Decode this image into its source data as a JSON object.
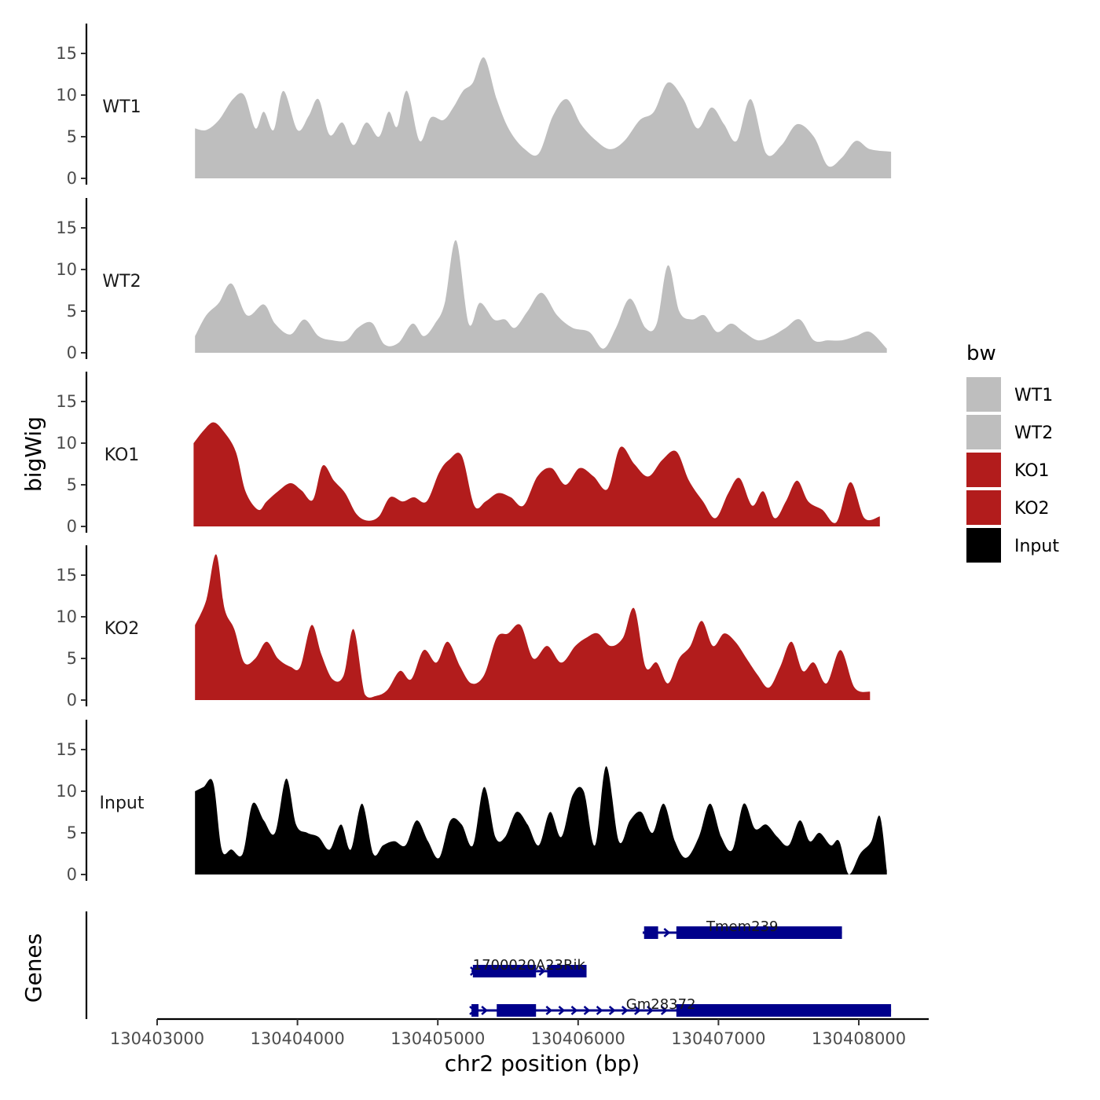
{
  "chart_data": {
    "type": "area",
    "x_axis": {
      "title": "chr2 position (bp)",
      "range": [
        130402950,
        130408500
      ],
      "ticks": [
        130403000,
        130404000,
        130405000,
        130406000,
        130407000,
        130408000
      ],
      "tick_labels": [
        "130403000",
        "130404000",
        "130405000",
        "130406000",
        "130407000",
        "130408000"
      ]
    },
    "y_axis": {
      "title": "bigWig",
      "range": [
        0,
        18.5
      ],
      "ticks": [
        0,
        5,
        10,
        15
      ],
      "tick_labels": [
        "0",
        "5",
        "10",
        "15"
      ]
    },
    "gene_axis_title": "Genes",
    "legend": {
      "title": "bw",
      "entries": [
        {
          "label": "WT1",
          "color": "#bebebe"
        },
        {
          "label": "WT2",
          "color": "#bebebe"
        },
        {
          "label": "KO1",
          "color": "#b21c1c"
        },
        {
          "label": "KO2",
          "color": "#b21c1c"
        },
        {
          "label": "Input",
          "color": "#000000"
        }
      ]
    },
    "tracks": [
      {
        "name": "WT1",
        "color": "#bebebe",
        "x": [
          130403270,
          130403350,
          130403440,
          130403540,
          130403620,
          130403700,
          130403760,
          130403830,
          130403900,
          130404000,
          130404080,
          130404150,
          130404230,
          130404320,
          130404400,
          130404490,
          130404580,
          130404650,
          130404710,
          130404780,
          130404870,
          130404950,
          130405040,
          130405110,
          130405180,
          130405250,
          130405330,
          130405420,
          130405510,
          130405620,
          130405720,
          130405820,
          130405920,
          130406020,
          130406130,
          130406230,
          130406330,
          130406440,
          130406540,
          130406640,
          130406750,
          130406850,
          130406950,
          130407040,
          130407130,
          130407230,
          130407340,
          130407450,
          130407560,
          130407680,
          130407780,
          130407880,
          130407980,
          130408080,
          130408230
        ],
        "y": [
          6,
          5.8,
          7,
          9.5,
          10,
          6,
          8,
          5.8,
          10.5,
          5.8,
          7.5,
          9.5,
          5.2,
          6.7,
          4,
          6.7,
          5,
          8,
          6.2,
          10.5,
          4.5,
          7.3,
          7,
          8.5,
          10.5,
          11.5,
          14.5,
          9.5,
          5.8,
          3.5,
          3,
          7.5,
          9.5,
          6.5,
          4.5,
          3.5,
          4.5,
          7,
          8,
          11.5,
          9.5,
          6,
          8.5,
          6.5,
          4.5,
          9.5,
          3,
          4,
          6.5,
          5,
          1.5,
          2.5,
          4.5,
          3.5,
          3.2
        ],
        "peaks": []
      },
      {
        "name": "WT2",
        "color": "#bebebe",
        "x": [
          130403270,
          130403350,
          130403440,
          130403530,
          130403640,
          130403760,
          130403840,
          130403950,
          130404050,
          130404150,
          130404250,
          130404350,
          130404430,
          130404530,
          130404620,
          130404720,
          130404820,
          130404900,
          130404980,
          130405050,
          130405130,
          130405220,
          130405300,
          130405400,
          130405480,
          130405550,
          130405640,
          130405740,
          130405850,
          130405960,
          130406080,
          130406180,
          130406270,
          130406370,
          130406480,
          130406560,
          130406640,
          130406720,
          130406810,
          130406900,
          130406990,
          130407090,
          130407180,
          130407280,
          130407380,
          130407480,
          130407580,
          130407680,
          130407780,
          130407880,
          130407980,
          130408080,
          130408200
        ],
        "y": [
          2,
          4.5,
          6,
          8.3,
          4.5,
          5.8,
          3.5,
          2.2,
          4,
          2,
          1.5,
          1.5,
          3,
          3.6,
          1,
          1.2,
          3.5,
          2,
          3.5,
          6,
          13.5,
          3.5,
          6,
          4,
          4,
          3,
          5,
          7.2,
          4.5,
          3,
          2.5,
          0.5,
          3,
          6.5,
          3,
          3.5,
          10.5,
          5,
          4,
          4.5,
          2.5,
          3.5,
          2.5,
          1.5,
          2,
          3,
          4,
          1.5,
          1.5,
          1.5,
          2,
          2.5,
          0.5
        ],
        "peaks": []
      },
      {
        "name": "KO1",
        "color": "#b21c1c",
        "x": [
          130403260,
          130403330,
          130403400,
          130403470,
          130403560,
          130403630,
          130403720,
          130403780,
          130403860,
          130403950,
          130404030,
          130404110,
          130404180,
          130404260,
          130404340,
          130404420,
          130404500,
          130404580,
          130404660,
          130404750,
          130404830,
          130404920,
          130405010,
          130405080,
          130405170,
          130405260,
          130405340,
          130405430,
          130405520,
          130405610,
          130405710,
          130405810,
          130405910,
          130406010,
          130406110,
          130406210,
          130406300,
          130406400,
          130406500,
          130406600,
          130406700,
          130406790,
          130406890,
          130406980,
          130407070,
          130407150,
          130407240,
          130407320,
          130407400,
          130407480,
          130407560,
          130407640,
          130407740,
          130407840,
          130407940,
          130408040,
          130408150
        ],
        "y": [
          10,
          11.5,
          12.5,
          11.5,
          9,
          4.2,
          2,
          3,
          4.2,
          5.2,
          4.3,
          3.2,
          7.3,
          5.5,
          4,
          1.5,
          0.7,
          1.2,
          3.5,
          3,
          3.5,
          3,
          6.5,
          8,
          8.5,
          2.5,
          3,
          4,
          3.5,
          2.5,
          6,
          7,
          5,
          7,
          6,
          4.5,
          9.5,
          7.5,
          6,
          8,
          9,
          5.5,
          3,
          1,
          4,
          5.8,
          2.5,
          4.2,
          1,
          3,
          5.5,
          3,
          2,
          0.5,
          5.3,
          1,
          1.2
        ],
        "peaks": []
      },
      {
        "name": "KO2",
        "color": "#b21c1c",
        "x": [
          130403270,
          130403350,
          130403420,
          130403480,
          130403550,
          130403620,
          130403700,
          130403780,
          130403860,
          130403950,
          130404020,
          130404100,
          130404170,
          130404250,
          130404330,
          130404400,
          130404480,
          130404560,
          130404640,
          130404730,
          130404810,
          130404900,
          130404990,
          130405070,
          130405160,
          130405240,
          130405330,
          130405420,
          130405500,
          130405590,
          130405680,
          130405780,
          130405880,
          130405980,
          130406060,
          130406140,
          130406230,
          130406320,
          130406400,
          130406480,
          130406560,
          130406640,
          130406720,
          130406800,
          130406880,
          130406960,
          130407040,
          130407120,
          130407200,
          130407280,
          130407360,
          130407440,
          130407520,
          130407600,
          130407680,
          130407770,
          130407870,
          130407970,
          130408080
        ],
        "y": [
          9,
          12,
          17.5,
          11,
          8.5,
          4.5,
          5,
          7,
          5,
          4,
          4,
          9,
          5.5,
          2.5,
          3,
          8.5,
          0.7,
          0.5,
          1.2,
          3.5,
          2.5,
          6,
          4.5,
          7,
          4,
          2,
          3,
          7.5,
          8,
          9,
          5,
          6.5,
          4.5,
          6.5,
          7.5,
          8,
          6.5,
          7.5,
          11,
          4,
          4.5,
          2,
          5,
          6.5,
          9.5,
          6.5,
          8,
          7,
          5,
          3,
          1.5,
          4,
          7,
          3.5,
          4.5,
          2,
          6,
          1.5,
          1
        ],
        "peaks": []
      },
      {
        "name": "Input",
        "color": "#000000",
        "x": [
          130403270,
          130403330,
          130403400,
          130403460,
          130403530,
          130403610,
          130403680,
          130403760,
          130403840,
          130403920,
          130403990,
          130404070,
          130404150,
          130404230,
          130404310,
          130404380,
          130404460,
          130404540,
          130404610,
          130404690,
          130404770,
          130404850,
          130404930,
          130405010,
          130405090,
          130405170,
          130405250,
          130405330,
          130405410,
          130405480,
          130405560,
          130405640,
          130405720,
          130405800,
          130405880,
          130405960,
          130406040,
          130406120,
          130406200,
          130406290,
          130406370,
          130406450,
          130406530,
          130406610,
          130406690,
          130406770,
          130406860,
          130406940,
          130407020,
          130407100,
          130407180,
          130407260,
          130407340,
          130407420,
          130407500,
          130407580,
          130407650,
          130407720,
          130407800,
          130407860,
          130407930,
          130408010,
          130408090,
          130408150,
          130408200
        ],
        "y": [
          10,
          10.5,
          11,
          3,
          3,
          2.5,
          8.5,
          6.5,
          5,
          11.5,
          6,
          5,
          4.5,
          3,
          6,
          3,
          8.5,
          2.5,
          3.5,
          4,
          3.5,
          6.5,
          4,
          2,
          6.5,
          6,
          3.5,
          10.5,
          4.5,
          4.5,
          7.5,
          6,
          3.5,
          7.5,
          4.5,
          9.5,
          10,
          3.5,
          13,
          4,
          6.5,
          7.5,
          5,
          8.5,
          4,
          2,
          4.5,
          8.5,
          4.5,
          3,
          8.5,
          5.5,
          6,
          4.5,
          3.5,
          6.5,
          4,
          5,
          3.5,
          4,
          0,
          2.5,
          4,
          7,
          0.5
        ],
        "peaks": []
      }
    ],
    "genes": [
      {
        "name": "Tmem239",
        "row": 0,
        "label_x": 130407170,
        "line": [
          130406460,
          130407880
        ],
        "exons": [
          [
            130406470,
            130406570
          ],
          [
            130406700,
            130407880
          ]
        ],
        "arrows": [
          130406500,
          130406630
        ]
      },
      {
        "name": "1700020A23Rik",
        "row": 1,
        "label_x": 130405650,
        "line": [
          130405240,
          130406060
        ],
        "exons": [
          [
            130405250,
            130405700
          ],
          [
            130405780,
            130406060
          ]
        ],
        "arrows": [
          130405250,
          130405740
        ]
      },
      {
        "name": "Gm28372",
        "row": 2,
        "label_x": 130406590,
        "line": [
          130405240,
          130408230
        ],
        "exons": [
          [
            130405240,
            130405290
          ],
          [
            130405420,
            130405700
          ],
          [
            130406700,
            130408230
          ]
        ],
        "arrows": [
          130405245,
          130405330,
          130405790,
          130405880,
          130405970,
          130406060,
          130406150,
          130406240,
          130406330,
          130406420,
          130406510,
          130406610
        ]
      }
    ]
  }
}
